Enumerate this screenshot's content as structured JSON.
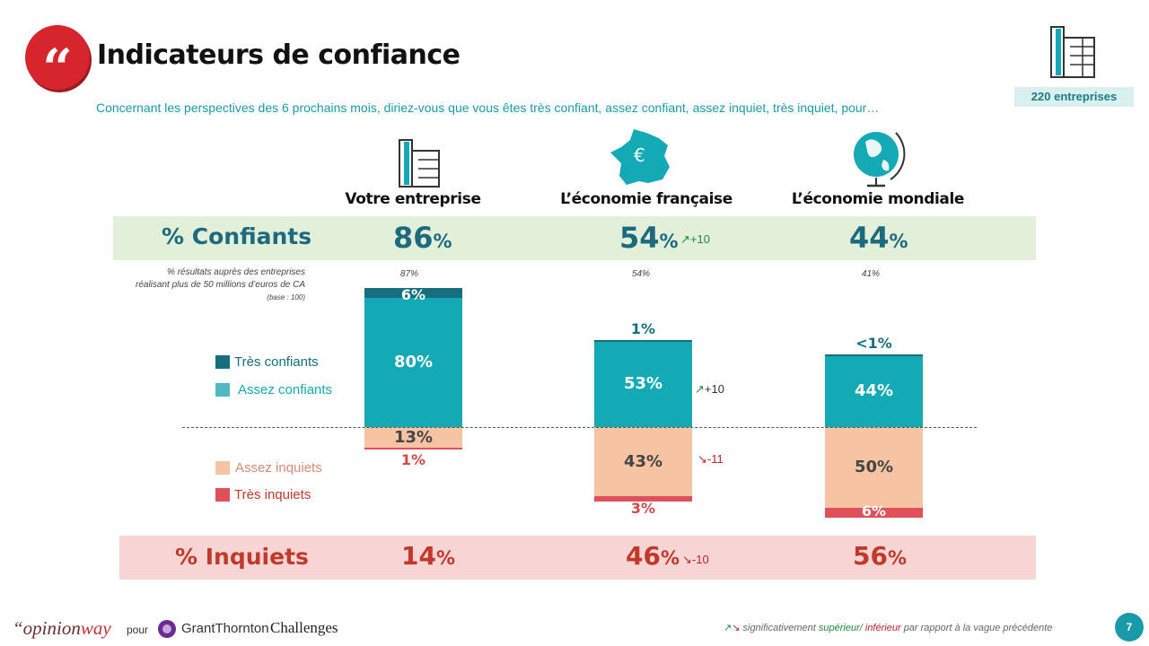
{
  "header": {
    "quote_glyph": "“",
    "title": "Indicateurs de confiance",
    "question": "Concernant les perspectives des 6 prochains mois, diriez-vous que vous êtes très confiant, assez confiant, assez inquiet, très inquiet, pour…",
    "sample": "220 entreprises"
  },
  "columns": [
    {
      "label": "Votre entreprise",
      "icon": "building-icon",
      "confiants": "86",
      "inquiets": "14",
      "ca50": "87%",
      "conf_delta": "",
      "inq_delta": ""
    },
    {
      "label": "L’économie française",
      "icon": "france-euro-map-icon",
      "confiants": "54",
      "inquiets": "46",
      "ca50": "54%",
      "conf_delta": "+10",
      "inq_delta": "-10"
    },
    {
      "label": "L’économie mondiale",
      "icon": "globe-icon",
      "confiants": "44",
      "inquiets": "56",
      "ca50": "41%",
      "conf_delta": "",
      "inq_delta": ""
    }
  ],
  "bands": {
    "confiants_label": "% Confiants",
    "inquiets_label": "% Inquiets",
    "percent_sign": "%"
  },
  "ca_note": {
    "line1": "% résultats auprès des entreprises",
    "line2": "réalisant plus de 50 millions d’euros de CA",
    "line3": "(base : 100)"
  },
  "legend": [
    {
      "label": "Très confiants",
      "color": "#176e80"
    },
    {
      "label": "Assez confiants",
      "color": "#4fb8c1"
    },
    {
      "label": "Assez inquiets",
      "color": "#f6c4a3"
    },
    {
      "label": "Très inquiets",
      "color": "#e0505a"
    }
  ],
  "chart_data": {
    "type": "bar",
    "stacked": "diverging",
    "categories": [
      "Votre entreprise",
      "L’économie française",
      "L’économie mondiale"
    ],
    "series": [
      {
        "name": "Très confiants",
        "values": [
          6,
          1,
          0.5
        ],
        "labels": [
          "6%",
          "1%",
          "<1%"
        ],
        "color": "#176e80"
      },
      {
        "name": "Assez confiants",
        "values": [
          80,
          53,
          44
        ],
        "labels": [
          "80%",
          "53%",
          "44%"
        ],
        "color": "#13aab5"
      },
      {
        "name": "Assez inquiets",
        "values": [
          13,
          43,
          50
        ],
        "labels": [
          "13%",
          "43%",
          "50%"
        ],
        "color": "#f6c4a3"
      },
      {
        "name": "Très inquiets",
        "values": [
          1,
          3,
          6
        ],
        "labels": [
          "1%",
          "3%",
          "6%"
        ],
        "color": "#e0505a"
      }
    ],
    "deltas": {
      "assez_confiants": [
        "",
        "+10",
        ""
      ],
      "assez_inquiets": [
        "",
        "-11",
        ""
      ]
    }
  },
  "footer": {
    "brand_prefix": "“opinion",
    "brand_suffix": "way",
    "pour": "pour",
    "partner1": "GrantThornton",
    "partner2": "Challenges",
    "note_prefix": "significativement",
    "note_sup": "supérieur",
    "note_sep": "/",
    "note_inf": "inférieur",
    "note_suffix": "par rapport à la vague précédente",
    "page": "7"
  },
  "colors": {
    "up": "#1e8c3a",
    "down": "#c0202a",
    "teal": "#13aab5",
    "dark_teal": "#176e80",
    "conf_text": "#1d6a7e",
    "inq_text": "#c0392b"
  }
}
